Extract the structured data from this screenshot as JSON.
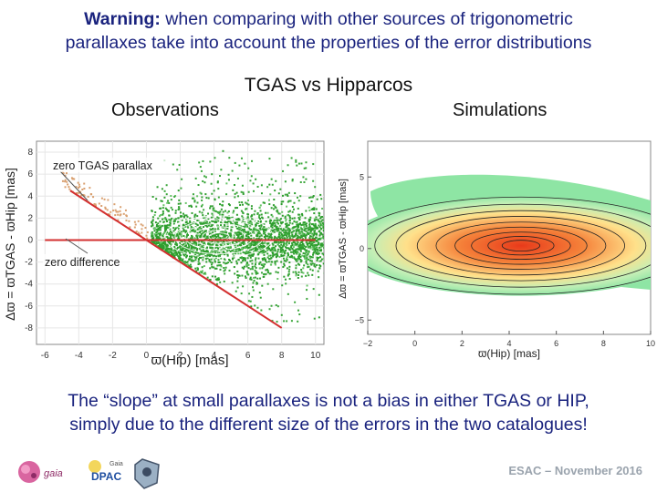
{
  "header": {
    "warning_bold": "Warning:",
    "warning_rest": " when comparing with other sources of trigonometric",
    "warning_line2": "parallaxes take into account the properties of the error distributions"
  },
  "comparison_title": "TGAS vs Hipparcos",
  "panel_labels": {
    "observations": "Observations",
    "simulations": "Simulations"
  },
  "annotations": {
    "zero_tgas": "zero TGAS parallax",
    "zero_diff": "zero difference"
  },
  "chart_data": [
    {
      "type": "scatter",
      "name": "observations",
      "title": "Observations",
      "xlabel": "ϖ(Hip)  [mas]",
      "ylabel": "Δϖ = ϖTGAS - ϖHip [mas]",
      "xlim": [
        -6.5,
        10.5
      ],
      "ylim": [
        -9.5,
        9
      ],
      "xticks": [
        -6,
        -4,
        -2,
        0,
        2,
        4,
        6,
        8,
        10
      ],
      "yticks": [
        -8,
        -6,
        -4,
        -2,
        0,
        2,
        4,
        6,
        8
      ],
      "lines": [
        {
          "name": "zero difference",
          "points": [
            [
              -6,
              0
            ],
            [
              10,
              0
            ]
          ],
          "color": "#d32f2f"
        },
        {
          "name": "zero TGAS parallax",
          "points": [
            [
              -4.5,
              4.5
            ],
            [
              8,
              -8
            ]
          ],
          "color": "#d32f2f"
        }
      ],
      "point_color": "#2e9e2e"
    },
    {
      "type": "heatmap",
      "name": "simulations",
      "title": "Simulations",
      "xlabel": "ϖ(Hip) [mas]",
      "ylabel": "Δϖ = ϖTGAS - ϖHip [mas]",
      "xlim": [
        -2,
        10
      ],
      "ylim": [
        -6,
        7.5
      ],
      "xticks": [
        -2,
        0,
        2,
        4,
        6,
        8,
        10
      ],
      "yticks": [
        -5,
        0,
        5
      ],
      "peak": [
        4.5,
        0.2
      ],
      "colors": {
        "low": "#8ee5a4",
        "mid": "#ffe08a",
        "high": "#e83a1a"
      }
    }
  ],
  "conclusion": {
    "line1": "The “slope” at small parallaxes is not a bias in either TGAS or HIP,",
    "line2": "simply due to the different size of the errors in the two catalogues!"
  },
  "logos": {
    "gaia": "gaia",
    "dpac_small": "Gaia",
    "dpac": "DPAC"
  },
  "footer": "ESAC – November 2016"
}
